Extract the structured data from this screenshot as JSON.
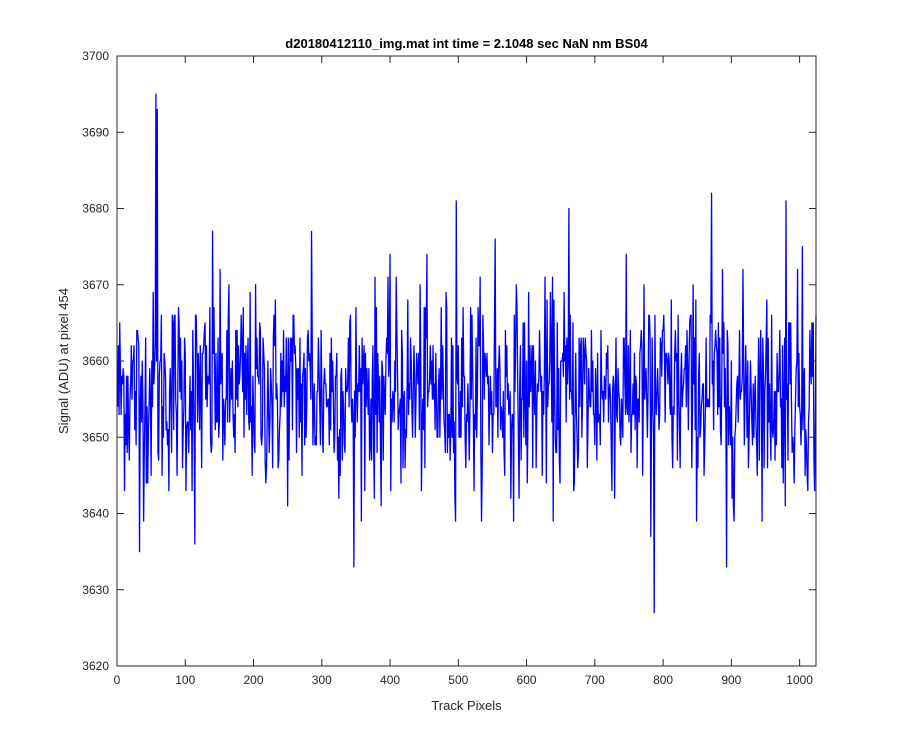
{
  "chart_data": {
    "type": "line",
    "title": "d20180412110_img.mat int time = 2.1048 sec  NaN nm BS04",
    "xlabel": "Track Pixels",
    "ylabel": "Signal (ADU) at pixel 454",
    "xlim": [
      0,
      1024
    ],
    "ylim": [
      3620,
      3700
    ],
    "xticks": [
      0,
      100,
      200,
      300,
      400,
      500,
      600,
      700,
      800,
      900,
      1000
    ],
    "yticks": [
      3620,
      3630,
      3640,
      3650,
      3660,
      3670,
      3680,
      3690,
      3700
    ],
    "grid": false,
    "legend": "none",
    "series": [
      {
        "color": "#0000ff",
        "x_start": 1,
        "x_end": 1024,
        "mean": 3656,
        "noise_sd": 6.5,
        "peaks": [
          {
            "x": 57,
            "y": 3695
          },
          {
            "x": 59,
            "y": 3693
          },
          {
            "x": 33,
            "y": 3635
          },
          {
            "x": 114,
            "y": 3636
          },
          {
            "x": 140,
            "y": 3677
          },
          {
            "x": 285,
            "y": 3677
          },
          {
            "x": 347,
            "y": 3633
          },
          {
            "x": 497,
            "y": 3681
          },
          {
            "x": 554,
            "y": 3676
          },
          {
            "x": 662,
            "y": 3680
          },
          {
            "x": 787,
            "y": 3627
          },
          {
            "x": 782,
            "y": 3637
          },
          {
            "x": 871,
            "y": 3682
          },
          {
            "x": 893,
            "y": 3633
          },
          {
            "x": 980,
            "y": 3681
          },
          {
            "x": 1004,
            "y": 3675
          }
        ]
      }
    ]
  }
}
